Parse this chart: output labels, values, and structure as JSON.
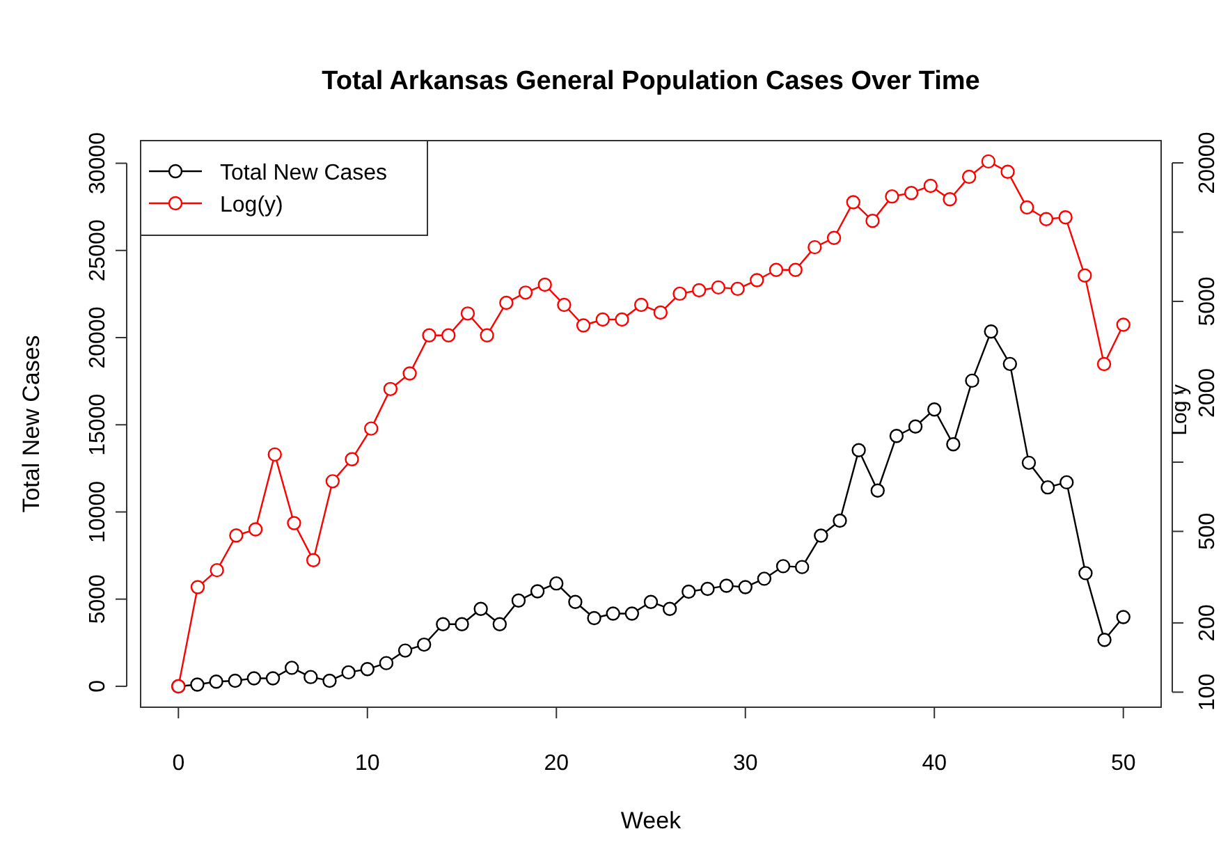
{
  "chart_data": {
    "type": "line",
    "title": "Total Arkansas General Population Cases Over Time",
    "xlabel": "Week",
    "ylabel": "Total New Cases",
    "y2label": "Log y",
    "x": [
      0,
      1,
      2,
      3,
      4,
      5,
      6,
      7,
      8,
      9,
      10,
      11,
      12,
      13,
      14,
      15,
      16,
      17,
      18,
      19,
      20,
      21,
      22,
      23,
      24,
      25,
      26,
      27,
      28,
      29,
      30,
      31,
      32,
      33,
      34,
      35,
      36,
      37,
      38,
      39,
      40,
      41,
      42,
      43,
      44,
      45,
      46,
      47,
      48,
      49,
      50
    ],
    "series": [
      {
        "name": "Total New Cases",
        "color": "#000000",
        "values": [
          0,
          100,
          265,
          320,
          455,
          455,
          1060,
          530,
          320,
          800,
          985,
          1330,
          2050,
          2390,
          3560,
          3560,
          4440,
          3560,
          4920,
          5450,
          5900,
          4840,
          3910,
          4170,
          4170,
          4840,
          4440,
          5430,
          5590,
          5770,
          5690,
          6170,
          6890,
          6840,
          8640,
          9500,
          13540,
          11230,
          14360,
          14900,
          15880,
          13880,
          17530,
          20350,
          18490,
          12820,
          11410,
          11700,
          6490,
          2660,
          3970
        ]
      },
      {
        "name": "Log(y)",
        "color": "#ff0000",
        "axis": "y2",
        "x": [
          0,
          1.02,
          2.04,
          3.06,
          4.08,
          5.1,
          6.12,
          7.14,
          8.16,
          9.18,
          10.2,
          11.22,
          12.24,
          13.27,
          14.29,
          15.31,
          16.33,
          17.35,
          18.37,
          19.39,
          20.41,
          21.43,
          22.45,
          23.47,
          24.49,
          25.51,
          26.53,
          27.55,
          28.57,
          29.59,
          30.61,
          31.63,
          32.65,
          33.67,
          34.69,
          35.71,
          36.73,
          37.76,
          38.78,
          39.8,
          40.82,
          41.84,
          42.86,
          43.88,
          44.9,
          45.92,
          46.94,
          47.96,
          48.98,
          50
        ],
        "values": [
          106,
          286,
          339,
          480,
          510,
          1080,
          543,
          375,
          826,
          1030,
          1400,
          2080,
          2430,
          3560,
          3560,
          4430,
          3560,
          4930,
          5460,
          5910,
          4830,
          3930,
          4170,
          4170,
          4830,
          4470,
          5400,
          5590,
          5750,
          5670,
          6180,
          6850,
          6850,
          8600,
          9440,
          13500,
          11200,
          14300,
          14800,
          15900,
          13900,
          17400,
          20300,
          18300,
          12800,
          11400,
          11600,
          6480,
          2670,
          3960
        ]
      }
    ],
    "xlim": [
      -2,
      52
    ],
    "xticks": [
      0,
      10,
      20,
      30,
      40,
      50
    ],
    "ylim": [
      -1200,
      31300
    ],
    "yticks": [
      0,
      5000,
      10000,
      15000,
      20000,
      25000,
      30000
    ],
    "y2lim": [
      86,
      25000
    ],
    "y2ticks": [
      100,
      200,
      500,
      {
        "value": 1000,
        "label": null
      },
      2000,
      5000,
      {
        "value": 10000,
        "label": null
      },
      20000
    ],
    "log": "y2",
    "marker": "circle",
    "legend": "top left"
  }
}
